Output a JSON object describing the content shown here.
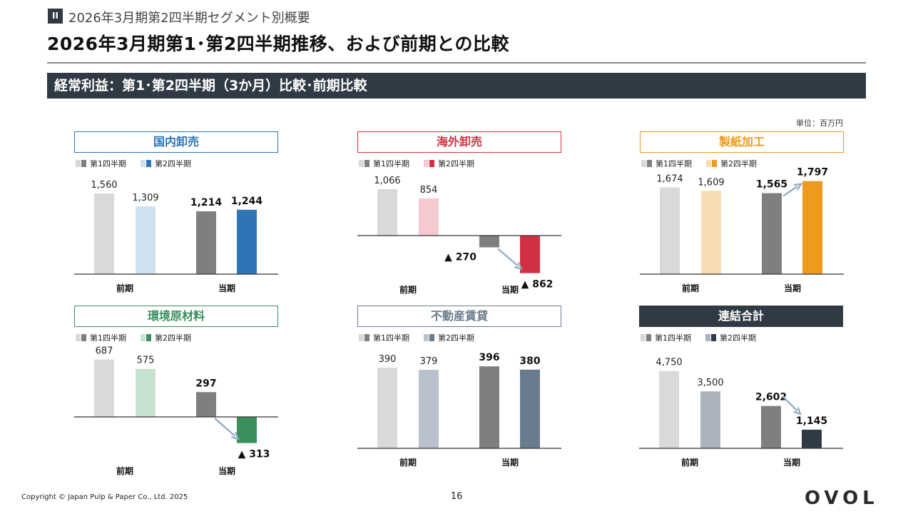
{
  "header": {
    "section_badge": "II",
    "section_title": "2026年3月期第2四半期セグメント別概要",
    "main_title": "2026年3月期第1･第2四半期推移、および前期との比較",
    "banner": "経常利益：第1･第2四半期（3か月）比較･前期比較",
    "unit": "単位：百万円"
  },
  "footer": {
    "copyright": "Copyright © Japan Pulp & Paper Co., Ltd. 2025",
    "page_number": "16",
    "logo": "OVOL"
  },
  "legend": {
    "q1": "第1四半期",
    "q2": "第2四半期"
  },
  "colors": {
    "prev_q1": "#d9d9d9",
    "curr_q1": "#7f7f7f",
    "arrow": "#8ea9c1",
    "axis": "#333333"
  },
  "chart_data": [
    {
      "type": "bar",
      "title": "国内卸売",
      "accent": "#2e75b6",
      "title_style": "outline",
      "categories": [
        "前期",
        "当期"
      ],
      "series": [
        {
          "name": "第1四半期",
          "values": [
            1560,
            1214
          ]
        },
        {
          "name": "第2四半期",
          "values": [
            1309,
            1244
          ]
        }
      ],
      "labels": [
        [
          "1,560",
          "1,309"
        ],
        [
          "1,214",
          "1,244"
        ]
      ],
      "q2_colors": [
        "#cfe0f0",
        "#2e75b6"
      ],
      "arrow": false
    },
    {
      "type": "bar",
      "title": "海外卸売",
      "accent": "#d03042",
      "title_style": "outline",
      "categories": [
        "前期",
        "当期"
      ],
      "series": [
        {
          "name": "第1四半期",
          "values": [
            1066,
            -270
          ]
        },
        {
          "name": "第2四半期",
          "values": [
            854,
            -862
          ]
        }
      ],
      "labels": [
        [
          "1,066",
          "854"
        ],
        [
          "▲ 270",
          "▲ 862"
        ]
      ],
      "q2_colors": [
        "#f4c9d0",
        "#d03042"
      ],
      "arrow": true
    },
    {
      "type": "bar",
      "title": "製紙加工",
      "accent": "#ed9a1f",
      "title_style": "outline",
      "categories": [
        "前期",
        "当期"
      ],
      "series": [
        {
          "name": "第1四半期",
          "values": [
            1674,
            1565
          ]
        },
        {
          "name": "第2四半期",
          "values": [
            1609,
            1797
          ]
        }
      ],
      "labels": [
        [
          "1,674",
          "1,609"
        ],
        [
          "1,565",
          "1,797"
        ]
      ],
      "q2_colors": [
        "#f8dcb4",
        "#ed9a1f"
      ],
      "arrow": true
    },
    {
      "type": "bar",
      "title": "環境原材料",
      "accent": "#3a8f5e",
      "title_style": "outline",
      "categories": [
        "前期",
        "当期"
      ],
      "series": [
        {
          "name": "第1四半期",
          "values": [
            687,
            297
          ]
        },
        {
          "name": "第2四半期",
          "values": [
            575,
            -313
          ]
        }
      ],
      "labels": [
        [
          "687",
          "575"
        ],
        [
          "297",
          "▲ 313"
        ]
      ],
      "q2_colors": [
        "#c7e2d1",
        "#3a8f5e"
      ],
      "arrow": true
    },
    {
      "type": "bar",
      "title": "不動産賃貸",
      "accent": "#6a7b8e",
      "title_style": "outline",
      "categories": [
        "前期",
        "当期"
      ],
      "series": [
        {
          "name": "第1四半期",
          "values": [
            390,
            396
          ]
        },
        {
          "name": "第2四半期",
          "values": [
            379,
            380
          ]
        }
      ],
      "labels": [
        [
          "390",
          "379"
        ],
        [
          "396",
          "380"
        ]
      ],
      "q2_colors": [
        "#b8c1cc",
        "#6a7b8e"
      ],
      "arrow": false
    },
    {
      "type": "bar",
      "title": "連結合計",
      "accent": "#2f3a45",
      "title_style": "filled",
      "categories": [
        "前期",
        "当期"
      ],
      "series": [
        {
          "name": "第1四半期",
          "values": [
            4750,
            2602
          ]
        },
        {
          "name": "第2四半期",
          "values": [
            3500,
            1145
          ]
        }
      ],
      "labels": [
        [
          "4,750",
          "3,500"
        ],
        [
          "2,602",
          "1,145"
        ]
      ],
      "q2_colors": [
        "#aab3be",
        "#2f3a45"
      ],
      "arrow": true
    }
  ]
}
